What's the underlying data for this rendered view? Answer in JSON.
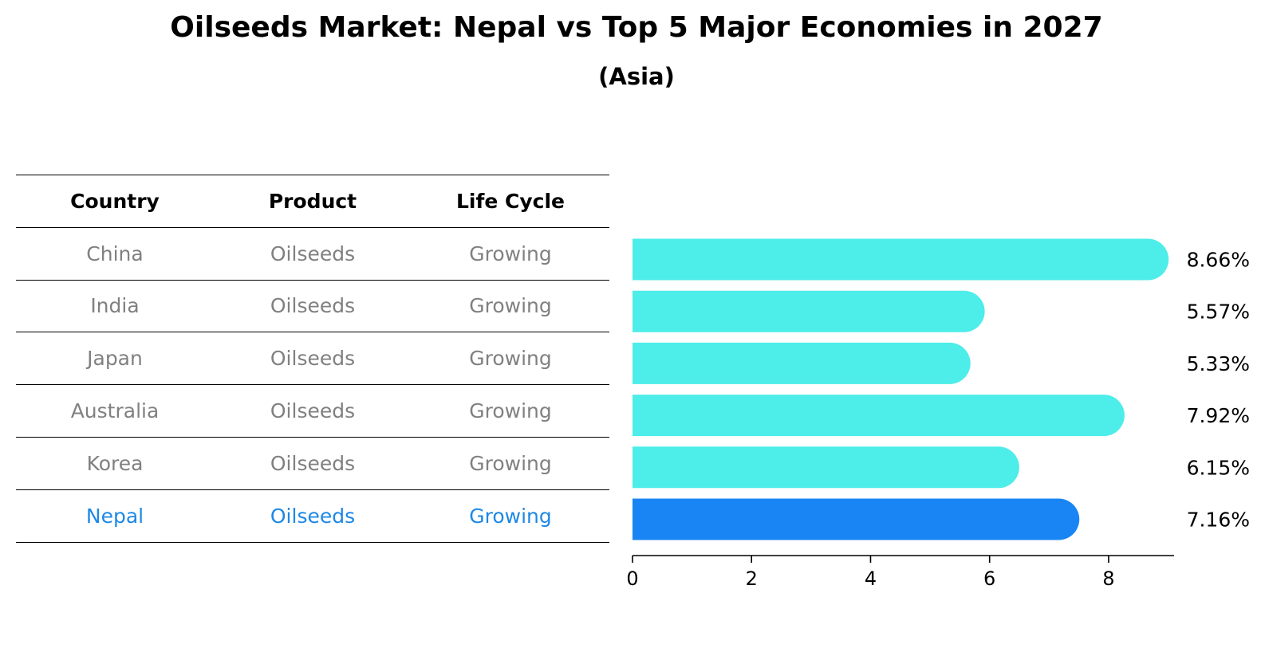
{
  "title": "Oilseeds Market: Nepal vs Top 5 Major Economies in 2027",
  "subtitle": "(Asia)",
  "table": {
    "headers": [
      "Country",
      "Product",
      "Life Cycle"
    ],
    "rows": [
      [
        "China",
        "Oilseeds",
        "Growing"
      ],
      [
        "India",
        "Oilseeds",
        "Growing"
      ],
      [
        "Japan",
        "Oilseeds",
        "Growing"
      ],
      [
        "Australia",
        "Oilseeds",
        "Growing"
      ],
      [
        "Korea",
        "Oilseeds",
        "Growing"
      ],
      [
        "Nepal",
        "Oilseeds",
        "Growing"
      ]
    ],
    "highlight_row": 5,
    "highlight_color": "#1e88e5",
    "text_color": "#808080"
  },
  "chart_data": {
    "type": "bar",
    "orientation": "horizontal",
    "categories": [
      "China",
      "India",
      "Japan",
      "Australia",
      "Korea",
      "Nepal"
    ],
    "values": [
      8.66,
      5.57,
      5.33,
      7.92,
      6.15,
      7.16
    ],
    "labels": [
      "8.66%",
      "5.57%",
      "5.33%",
      "7.92%",
      "6.15%",
      "7.16%"
    ],
    "highlight_index": 5,
    "bar_color": "#4dede9",
    "highlight_color": "#1985f5",
    "xlim": [
      0,
      9.1
    ],
    "xticks": [
      0,
      2,
      4,
      6,
      8
    ],
    "grid": false
  }
}
